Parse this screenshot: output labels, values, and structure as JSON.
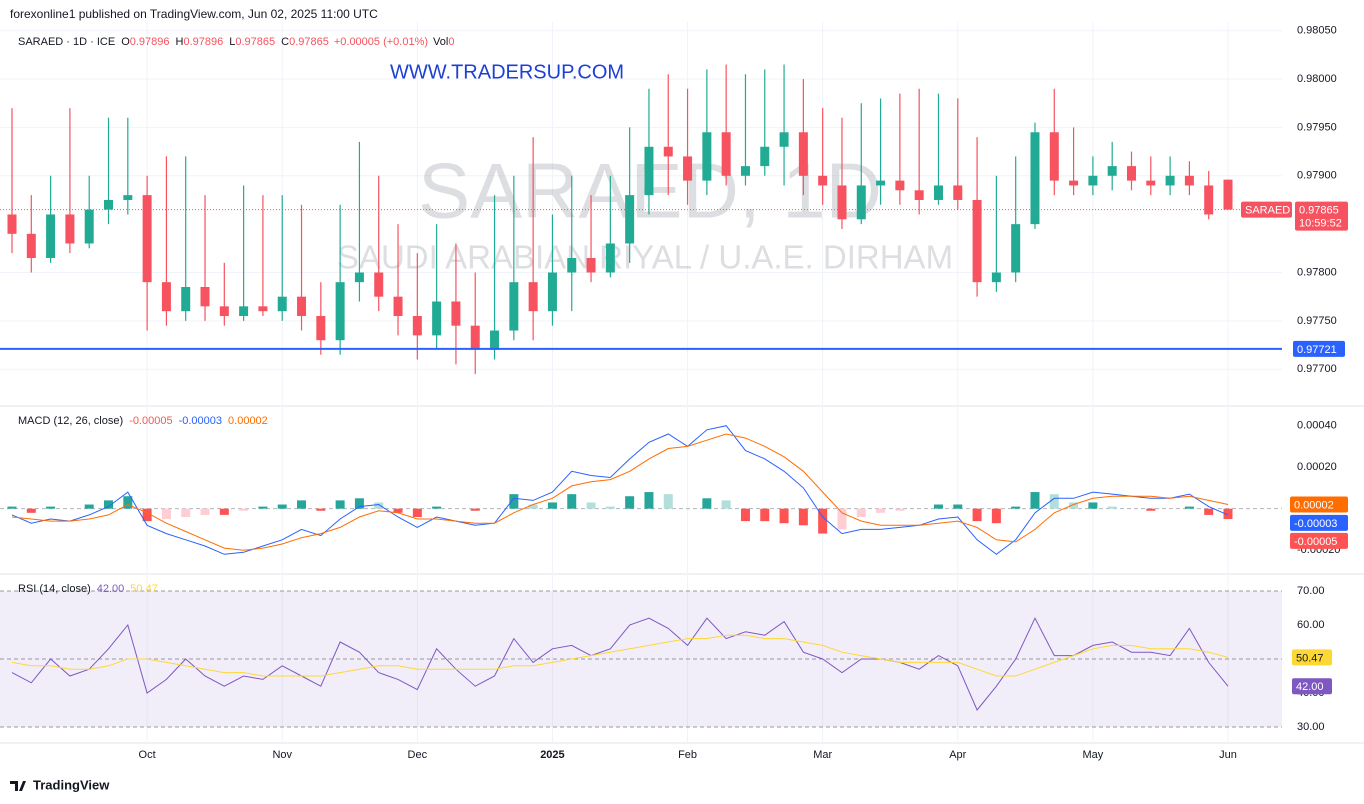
{
  "header": "forexonline1 published on TradingView.com, Jun 02, 2025 11:00 UTC",
  "footer": "TradingView",
  "chart_data": [
    {
      "type": "candlestick",
      "legend": {
        "symbol": "SARAED · 1D · ICE",
        "fields": [
          {
            "key": "O",
            "value": 0.97896
          },
          {
            "key": "H",
            "value": 0.97896
          },
          {
            "key": "L",
            "value": 0.97865
          },
          {
            "key": "C",
            "value": 0.97865
          }
        ],
        "change": "+0.00005 (+0.01%)",
        "volume_key": "Vol",
        "volume": 0
      },
      "watermark": "SARAED, 1D",
      "watermark_subtitle": "SAUDI ARABIAN RIYAL / U.A.E. DIRHAM",
      "annotation": "WWW.TRADERSUP.COM",
      "last_label": {
        "symbol": "SARAED",
        "countdown": "10:59:52"
      },
      "up_color": "#22ab94",
      "down_color": "#f7525f",
      "level": {
        "value": 0.97721,
        "color": "#2962ff"
      },
      "ylim": [
        0.97663,
        0.98059
      ],
      "yticks": [
        {
          "value": 0.9805,
          "label": "0.98050"
        },
        {
          "value": 0.98,
          "label": "0.98000"
        },
        {
          "value": 0.9795,
          "label": "0.97950"
        },
        {
          "value": 0.979,
          "label": "0.97900"
        },
        {
          "value": 0.978,
          "label": "0.97800"
        },
        {
          "value": 0.9775,
          "label": "0.97750"
        },
        {
          "value": 0.977,
          "label": "0.97700"
        }
      ],
      "grid": true,
      "categories": [
        null,
        null,
        null,
        null,
        null,
        null,
        null,
        "Oct",
        null,
        null,
        null,
        null,
        null,
        null,
        "Nov",
        null,
        null,
        null,
        null,
        null,
        null,
        "Dec",
        null,
        null,
        null,
        null,
        null,
        null,
        "2025",
        null,
        null,
        null,
        null,
        null,
        null,
        "Feb",
        null,
        null,
        null,
        null,
        null,
        null,
        "Mar",
        null,
        null,
        null,
        null,
        null,
        null,
        "Apr",
        null,
        null,
        null,
        null,
        null,
        null,
        "May",
        null,
        null,
        null,
        null,
        null,
        null,
        "Jun"
      ],
      "ohlc": [
        [
          0.9786,
          0.9797,
          0.9782,
          0.9784
        ],
        [
          0.9784,
          0.9788,
          0.978,
          0.97815
        ],
        [
          0.97815,
          0.979,
          0.9781,
          0.9786
        ],
        [
          0.9786,
          0.9797,
          0.9782,
          0.9783
        ],
        [
          0.9783,
          0.979,
          0.97825,
          0.97865
        ],
        [
          0.97865,
          0.9796,
          0.9785,
          0.97875
        ],
        [
          0.97875,
          0.9796,
          0.9786,
          0.9788
        ],
        [
          0.9788,
          0.979,
          0.9774,
          0.9779
        ],
        [
          0.9779,
          0.9792,
          0.97745,
          0.9776
        ],
        [
          0.9776,
          0.9792,
          0.9775,
          0.97785
        ],
        [
          0.97785,
          0.9788,
          0.9775,
          0.97765
        ],
        [
          0.97765,
          0.9781,
          0.97745,
          0.97755
        ],
        [
          0.97755,
          0.9789,
          0.9775,
          0.97765
        ],
        [
          0.97765,
          0.9788,
          0.97755,
          0.9776
        ],
        [
          0.9776,
          0.9788,
          0.9775,
          0.97775
        ],
        [
          0.97775,
          0.9787,
          0.9774,
          0.97755
        ],
        [
          0.97755,
          0.9779,
          0.97715,
          0.9773
        ],
        [
          0.9773,
          0.9787,
          0.97715,
          0.9779
        ],
        [
          0.9779,
          0.97935,
          0.9777,
          0.978
        ],
        [
          0.978,
          0.979,
          0.9776,
          0.97775
        ],
        [
          0.97775,
          0.9785,
          0.97735,
          0.97755
        ],
        [
          0.97755,
          0.9782,
          0.9771,
          0.97735
        ],
        [
          0.97735,
          0.9785,
          0.9772,
          0.9777
        ],
        [
          0.9777,
          0.9783,
          0.97705,
          0.97745
        ],
        [
          0.97745,
          0.978,
          0.97695,
          0.9772
        ],
        [
          0.9772,
          0.9788,
          0.9771,
          0.9774
        ],
        [
          0.9774,
          0.979,
          0.9773,
          0.9779
        ],
        [
          0.9779,
          0.9794,
          0.9773,
          0.9776
        ],
        [
          0.9776,
          0.9786,
          0.97745,
          0.978
        ],
        [
          0.978,
          0.979,
          0.9776,
          0.97815
        ],
        [
          0.97815,
          0.9788,
          0.9779,
          0.978
        ],
        [
          0.978,
          0.979,
          0.97795,
          0.9783
        ],
        [
          0.9783,
          0.9795,
          0.9781,
          0.9788
        ],
        [
          0.9788,
          0.9799,
          0.9786,
          0.9793
        ],
        [
          0.9793,
          0.98005,
          0.9788,
          0.9792
        ],
        [
          0.9792,
          0.9799,
          0.9787,
          0.97895
        ],
        [
          0.97895,
          0.9801,
          0.9788,
          0.97945
        ],
        [
          0.97945,
          0.98015,
          0.9789,
          0.979
        ],
        [
          0.979,
          0.98005,
          0.9789,
          0.9791
        ],
        [
          0.9791,
          0.9801,
          0.979,
          0.9793
        ],
        [
          0.9793,
          0.98015,
          0.9789,
          0.97945
        ],
        [
          0.97945,
          0.98,
          0.9788,
          0.979
        ],
        [
          0.979,
          0.9797,
          0.9787,
          0.9789
        ],
        [
          0.9789,
          0.9796,
          0.97845,
          0.97855
        ],
        [
          0.97855,
          0.97975,
          0.9785,
          0.9789
        ],
        [
          0.9789,
          0.9798,
          0.9787,
          0.97895
        ],
        [
          0.97895,
          0.97985,
          0.9787,
          0.97885
        ],
        [
          0.97885,
          0.9799,
          0.9786,
          0.97875
        ],
        [
          0.97875,
          0.97985,
          0.9787,
          0.9789
        ],
        [
          0.9789,
          0.9798,
          0.97865,
          0.97875
        ],
        [
          0.97875,
          0.9794,
          0.97775,
          0.9779
        ],
        [
          0.9779,
          0.979,
          0.9778,
          0.978
        ],
        [
          0.978,
          0.9792,
          0.9779,
          0.9785
        ],
        [
          0.9785,
          0.97955,
          0.97845,
          0.97945
        ],
        [
          0.97945,
          0.9799,
          0.9788,
          0.97895
        ],
        [
          0.97895,
          0.9795,
          0.9788,
          0.9789
        ],
        [
          0.9789,
          0.9792,
          0.9788,
          0.979
        ],
        [
          0.979,
          0.97935,
          0.97885,
          0.9791
        ],
        [
          0.9791,
          0.97925,
          0.97885,
          0.97895
        ],
        [
          0.97895,
          0.9792,
          0.9788,
          0.9789
        ],
        [
          0.9789,
          0.9792,
          0.9788,
          0.979
        ],
        [
          0.979,
          0.97915,
          0.9788,
          0.9789
        ],
        [
          0.9789,
          0.97905,
          0.97855,
          0.9786
        ],
        [
          0.97896,
          0.97896,
          0.97865,
          0.97865
        ]
      ]
    },
    {
      "type": "macd",
      "title": "MACD (12, 26, close)",
      "ylim": [
        -0.00031,
        0.00049
      ],
      "yticks": [
        {
          "value": 0.0004,
          "label": "0.00040"
        },
        {
          "value": 0.0002,
          "label": "0.00020"
        },
        {
          "value": -0.0002,
          "label": "-0.00020"
        }
      ],
      "histogram": {
        "colors": [
          "#26a69a",
          "#b2dfdb",
          "#ffcdd2",
          "#ff5252"
        ],
        "values": [
          1e-05,
          -2e-05,
          1e-05,
          0,
          2e-05,
          4e-05,
          6e-05,
          -6e-05,
          -5e-05,
          -4e-05,
          -3e-05,
          -3e-05,
          -1e-05,
          1e-05,
          2e-05,
          4e-05,
          -1e-05,
          4e-05,
          5e-05,
          3e-05,
          -2e-05,
          -4e-05,
          1e-05,
          0,
          -1e-05,
          0,
          7e-05,
          2e-05,
          3e-05,
          7e-05,
          3e-05,
          1e-05,
          6e-05,
          8e-05,
          7e-05,
          0,
          5e-05,
          4e-05,
          -6e-05,
          -6e-05,
          -7e-05,
          -8e-05,
          -0.00012,
          -0.0001,
          -4e-05,
          -2e-05,
          -1e-05,
          0,
          2e-05,
          2e-05,
          -6e-05,
          -7e-05,
          1e-05,
          8e-05,
          7e-05,
          3e-05,
          3e-05,
          1e-05,
          0,
          -1e-05,
          0,
          1e-05,
          -3e-05,
          -5e-05
        ]
      },
      "series": [
        {
          "color": "#2962ff",
          "values": [
            -3e-05,
            -7e-05,
            -5e-05,
            -6e-05,
            -3e-05,
            1e-05,
            8e-05,
            -8e-05,
            -0.00012,
            -0.00015,
            -0.00018,
            -0.00022,
            -0.00021,
            -0.00018,
            -0.00015,
            -0.0001,
            -0.00013,
            -5e-05,
            1e-05,
            2e-05,
            -4e-05,
            -9e-05,
            -4e-05,
            -6e-05,
            -8e-05,
            -7e-05,
            5e-05,
            4e-05,
            8e-05,
            0.00018,
            0.00016,
            0.00015,
            0.00024,
            0.00032,
            0.00036,
            0.0003,
            0.00038,
            0.0004,
            0.00028,
            0.00024,
            0.00018,
            0.0001,
            -4e-05,
            -0.00012,
            -0.0001,
            -0.0001,
            -9e-05,
            -8e-05,
            -5e-05,
            -4e-05,
            -0.00015,
            -0.00022,
            -0.00015,
            -2e-05,
            5e-05,
            5e-05,
            8e-05,
            7e-05,
            6e-05,
            5e-05,
            5e-05,
            7e-05,
            1e-05,
            -3e-05
          ]
        },
        {
          "color": "#ff6d00",
          "values": [
            -4e-05,
            -5e-05,
            -6e-05,
            -6e-05,
            -5e-05,
            -3e-05,
            2e-05,
            -2e-05,
            -7e-05,
            -0.00011,
            -0.00015,
            -0.00019,
            -0.0002,
            -0.00019,
            -0.00017,
            -0.00014,
            -0.00012,
            -9e-05,
            -4e-05,
            -1e-05,
            -2e-05,
            -5e-05,
            -5e-05,
            -6e-05,
            -7e-05,
            -7e-05,
            -2e-05,
            2e-05,
            5e-05,
            0.00011,
            0.00013,
            0.00014,
            0.00018,
            0.00024,
            0.00029,
            0.0003,
            0.00033,
            0.00036,
            0.00034,
            0.0003,
            0.00025,
            0.00018,
            8e-05,
            -2e-05,
            -6e-05,
            -8e-05,
            -8e-05,
            -8e-05,
            -7e-05,
            -6e-05,
            -9e-05,
            -0.00015,
            -0.00016,
            -0.0001,
            -2e-05,
            2e-05,
            5e-05,
            6e-05,
            6e-05,
            6e-05,
            5e-05,
            6e-05,
            4e-05,
            2e-05
          ]
        }
      ]
    },
    {
      "type": "rsi",
      "title": "RSI (14, close)",
      "ylim": [
        25.6,
        74.7
      ],
      "yticks": [
        {
          "value": 70,
          "label": "70.00"
        },
        {
          "value": 60,
          "label": "60.00"
        },
        {
          "value": 50,
          "label": "50.00"
        },
        {
          "value": 40,
          "label": "40.00"
        },
        {
          "value": 30,
          "label": "30.00"
        }
      ],
      "bands": [
        70,
        50,
        30
      ],
      "band_color": "#7e57c2",
      "series": [
        {
          "color": "#7e57c2",
          "values": [
            46,
            43,
            50,
            45,
            47,
            53,
            60,
            40,
            44,
            50,
            45,
            42,
            45,
            44,
            48,
            45,
            42,
            55,
            52,
            46,
            44,
            41,
            53,
            47,
            42,
            45,
            56,
            49,
            53,
            54,
            51,
            53,
            60,
            62,
            59,
            54,
            62,
            56,
            58,
            57,
            61,
            52,
            50,
            46,
            50,
            50,
            49,
            47,
            51,
            48,
            35,
            42,
            50,
            62,
            51,
            51,
            54,
            55,
            52,
            52,
            51,
            59,
            49,
            42
          ],
          "value_labels": [
            null,
            null,
            null,
            null,
            null,
            null,
            null,
            null,
            null,
            null,
            null,
            null,
            null,
            null,
            null,
            null,
            null,
            null,
            null,
            null,
            null,
            null,
            null,
            null,
            null,
            null,
            null,
            null,
            null,
            null,
            null,
            null,
            null,
            null,
            null,
            null,
            null,
            null,
            null,
            null,
            null,
            null,
            null,
            null,
            null,
            null,
            null,
            null,
            null,
            null,
            null,
            null,
            null,
            null,
            null,
            null,
            null,
            null,
            null,
            null,
            null,
            null,
            null,
            "42.00"
          ]
        },
        {
          "color": "#fdd835",
          "values": [
            49,
            48,
            48,
            47,
            47,
            48,
            50,
            50,
            49,
            48,
            47,
            46,
            46,
            45,
            45,
            45,
            45,
            46,
            47,
            48,
            48,
            47,
            47,
            47,
            47,
            47,
            48,
            48,
            49,
            50,
            51,
            52,
            53,
            54,
            55,
            56,
            56,
            57,
            57,
            56,
            56,
            55,
            54,
            52,
            51,
            50,
            49,
            49,
            49,
            49,
            47,
            45,
            45,
            47,
            49,
            51,
            53,
            54,
            54,
            53,
            53,
            53,
            52,
            50.47
          ]
        }
      ]
    }
  ]
}
